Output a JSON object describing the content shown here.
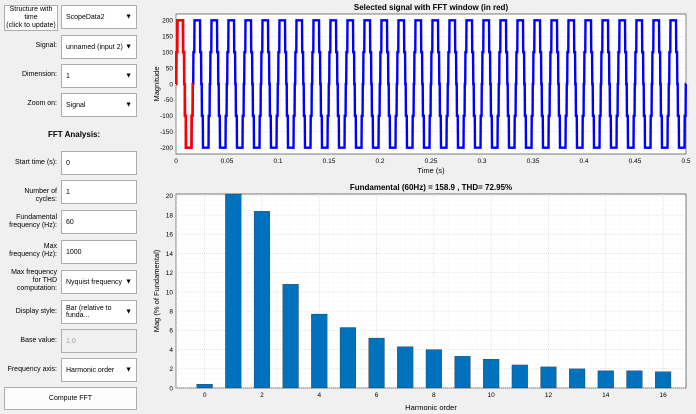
{
  "controls": {
    "structure_button": "Structure with time\n(click to update)",
    "structure_value": "ScopeData2",
    "signal_label": "Signal:",
    "signal_value": "unnamed (input 2)",
    "dimension_label": "Dimension:",
    "dimension_value": "1",
    "zoom_label": "Zoom on:",
    "zoom_value": "Signal",
    "fft_heading": "FFT Analysis:",
    "start_time_label": "Start time (s):",
    "start_time_value": "0",
    "cycles_label": "Number of cycles:",
    "cycles_value": "1",
    "fund_freq_label": "Fundamental\nfrequency (Hz):",
    "fund_freq_value": "60",
    "max_freq_label": "Max\nfrequency (Hz):",
    "max_freq_value": "1000",
    "thd_label": "Max frequency\nfor THD\ncomputation:",
    "thd_value": "Nyquist frequency",
    "display_style_label": "Display style:",
    "display_style_value": "Bar (relative to funda...",
    "base_value_label": "Base value:",
    "base_value_value": "1.0",
    "freq_axis_label": "Frequency axis:",
    "freq_axis_value": "Harmonic order",
    "compute_button": "Compute FFT"
  },
  "chart_data": [
    {
      "type": "line",
      "title": "Selected signal with FFT window (in red)",
      "xlabel": "Time (s)",
      "ylabel": "Magnitude",
      "xlim": [
        0,
        0.5
      ],
      "ylim": [
        -220,
        220
      ],
      "x_ticks": [
        "0",
        "0.05",
        "0.1",
        "0.15",
        "0.2",
        "0.25",
        "0.3",
        "0.35",
        "0.4",
        "0.45",
        "0.5"
      ],
      "y_ticks": [
        "200",
        "150",
        "100",
        "50",
        "0",
        "-50",
        "-100",
        "-150",
        "-200"
      ],
      "signal": {
        "frequency_hz": 60,
        "amplitude": 200,
        "color": "#0000ff"
      },
      "fft_window": {
        "start": 0,
        "end": 0.01667,
        "color": "#ff0000"
      },
      "grid": true
    },
    {
      "type": "bar",
      "title": "Fundamental (60Hz) = 158.9 , THD= 72.95%",
      "xlabel": "Harmonic order",
      "ylabel": "Mag (% of Fundamental)",
      "xlim": [
        -1,
        16.8
      ],
      "ylim": [
        0,
        20.2
      ],
      "x_ticks": [
        "0",
        "2",
        "4",
        "6",
        "8",
        "10",
        "12",
        "14",
        "16"
      ],
      "y_ticks": [
        "20",
        "18",
        "16",
        "14",
        "12",
        "10",
        "8",
        "6",
        "4",
        "2",
        "0"
      ],
      "categories": [
        0,
        1,
        2,
        3,
        4,
        5,
        6,
        7,
        8,
        9,
        10,
        11,
        12,
        13,
        14,
        15,
        16
      ],
      "values": [
        0.4,
        20.2,
        18.4,
        10.8,
        7.7,
        6.3,
        5.2,
        4.3,
        4.0,
        3.3,
        3.0,
        2.4,
        2.2,
        2.0,
        1.8,
        1.8,
        1.7
      ],
      "bar_color": "#0072bd",
      "grid": true
    }
  ]
}
